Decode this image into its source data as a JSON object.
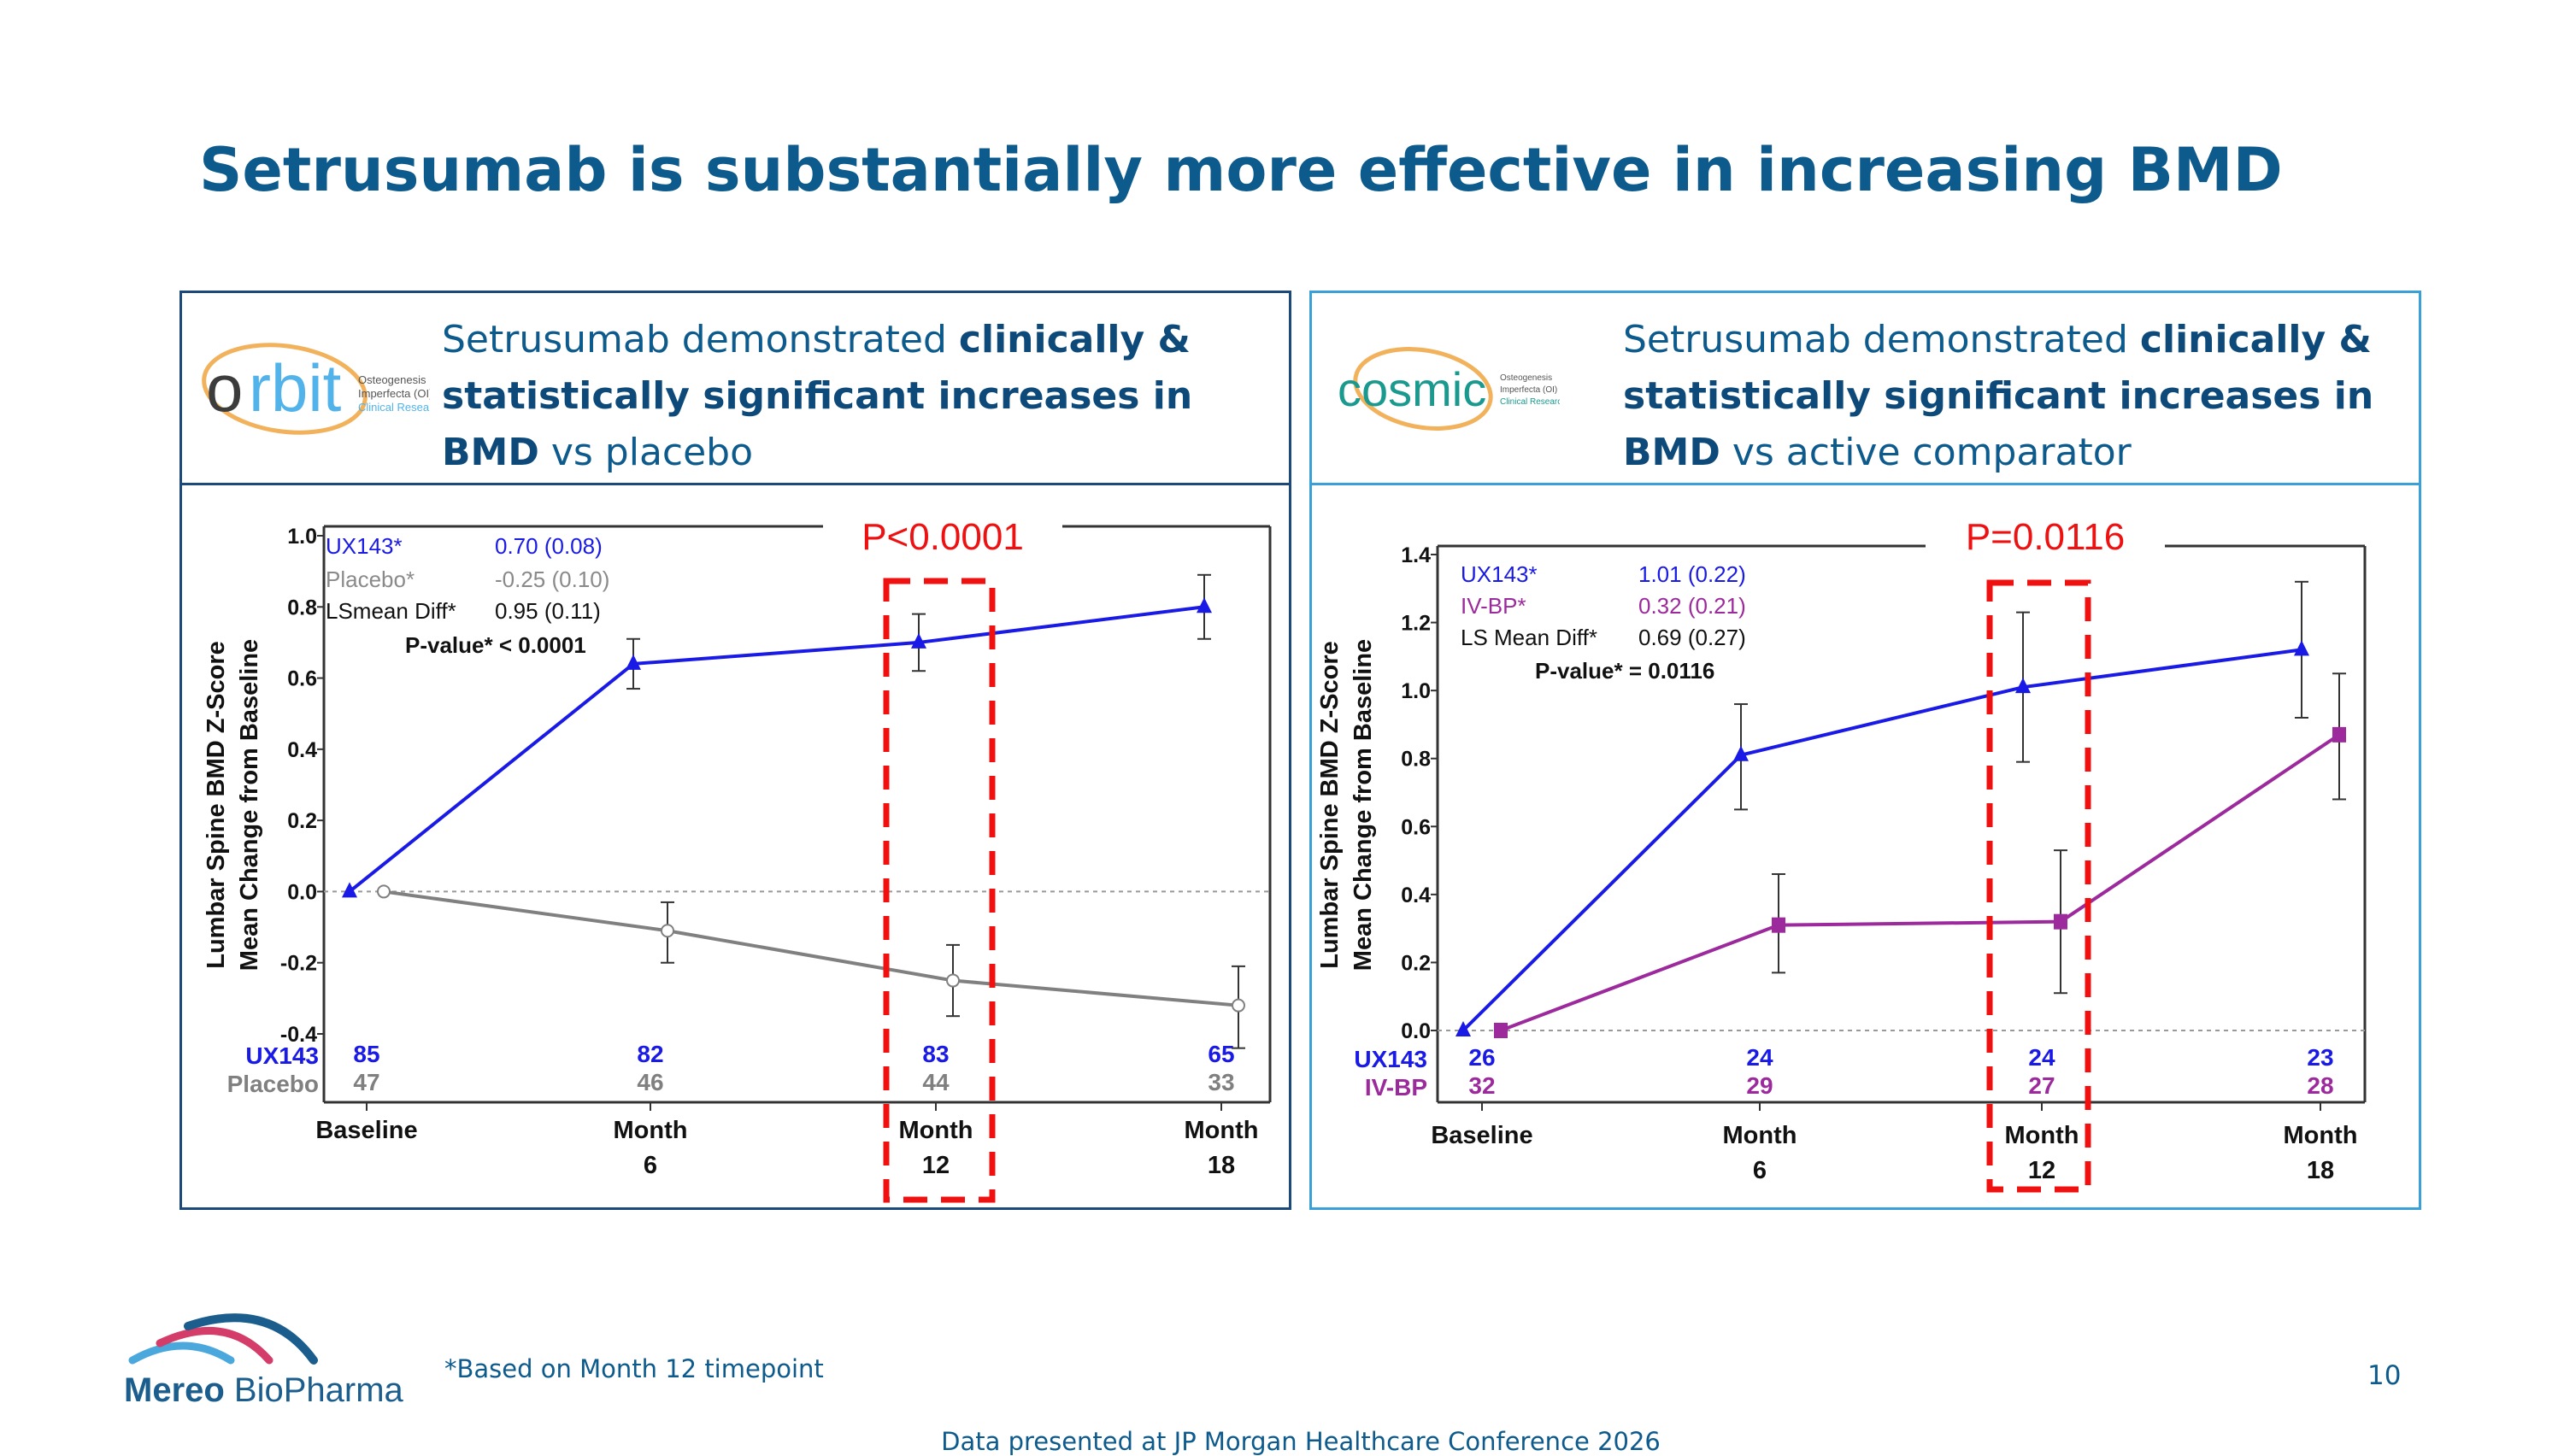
{
  "title": "Setrusumab is substantially more effective in increasing BMD",
  "panels": {
    "left": {
      "logo_text": "orbit",
      "logo_subtext": [
        "Osteogenesis",
        "Imperfecta (OI)",
        "Clinical Research"
      ],
      "headline_pre": "Setrusumab demonstrated ",
      "headline_bold": "clinically & statistically significant increases in BMD",
      "headline_post": " vs placebo"
    },
    "right": {
      "logo_text": "cosmic",
      "logo_subtext": [
        "Osteogenesis",
        "Imperfecta (OI)",
        "Clinical Research"
      ],
      "headline_pre": "Setrusumab demonstrated ",
      "headline_bold": "clinically & statistically significant increases in BMD",
      "headline_post": " vs active comparator"
    }
  },
  "footnote": "*Based on Month 12 timepoint",
  "page_number": "10",
  "source": "Data presented at JP Morgan Healthcare Conference 2026",
  "company_logo": {
    "bold": "Mereo",
    "light": " BioPharma",
    "colors": [
      "#1b5e8e",
      "#d43c6a",
      "#4aa8dc"
    ]
  },
  "chart_data": [
    {
      "type": "line",
      "ylabel": [
        "Lumbar Spine BMD Z-Score",
        "Mean Change from Baseline"
      ],
      "categories": [
        [
          "Baseline"
        ],
        [
          "Month",
          "6"
        ],
        [
          "Month",
          "12"
        ],
        [
          "Month",
          "18"
        ]
      ],
      "ylim": [
        -0.4,
        1.0
      ],
      "yticks": [
        "1.0",
        "0.8",
        "0.6",
        "0.4",
        "0.2",
        "0.0",
        "-0.2",
        "-0.4"
      ],
      "yticks_values": [
        1.0,
        0.8,
        0.6,
        0.4,
        0.2,
        0.0,
        -0.2,
        -0.4
      ],
      "reference_line": 0.0,
      "highlight_category": "Month 12",
      "p_annotation": "P<0.0001",
      "series": [
        {
          "name": "UX143",
          "color": "#1a1ae6",
          "marker": "triangle",
          "values": [
            0.0,
            0.64,
            0.7,
            0.8
          ],
          "error_low": [
            0.0,
            0.57,
            0.62,
            0.71
          ],
          "error_high": [
            0.0,
            0.71,
            0.78,
            0.89
          ],
          "n": [
            "85",
            "82",
            "83",
            "65"
          ]
        },
        {
          "name": "Placebo",
          "color": "#808080",
          "marker": "open-circle",
          "values": [
            0.0,
            -0.11,
            -0.25,
            -0.32
          ],
          "error_low": [
            0.0,
            -0.2,
            -0.35,
            -0.44
          ],
          "error_high": [
            0.0,
            -0.03,
            -0.15,
            -0.21
          ],
          "n": [
            "47",
            "46",
            "44",
            "33"
          ]
        }
      ],
      "stats_box": [
        {
          "label": "UX143*",
          "value": "0.70 (0.08)",
          "color": "#1a1ae6"
        },
        {
          "label": "Placebo*",
          "value": "-0.25 (0.10)",
          "color": "#8a8a8a"
        },
        {
          "label": "LSmean Diff*",
          "value": "0.95 (0.11)",
          "color": "#111111"
        }
      ],
      "p_value_text": "P-value* < 0.0001"
    },
    {
      "type": "line",
      "ylabel": [
        "Lumbar Spine BMD Z-Score",
        "Mean Change from Baseline"
      ],
      "categories": [
        [
          "Baseline"
        ],
        [
          "Month",
          "6"
        ],
        [
          "Month",
          "12"
        ],
        [
          "Month",
          "18"
        ]
      ],
      "ylim": [
        0.0,
        1.4
      ],
      "yticks": [
        "1.4",
        "1.2",
        "1.0",
        "0.8",
        "0.6",
        "0.4",
        "0.2",
        "0.0"
      ],
      "yticks_values": [
        1.4,
        1.2,
        1.0,
        0.8,
        0.6,
        0.4,
        0.2,
        0.0
      ],
      "reference_line": 0.0,
      "highlight_category": "Month 12",
      "p_annotation": "P=0.0116",
      "series": [
        {
          "name": "UX143",
          "color": "#1a1ae6",
          "marker": "triangle",
          "values": [
            0.0,
            0.81,
            1.01,
            1.12
          ],
          "error_low": [
            0.0,
            0.65,
            0.79,
            0.92
          ],
          "error_high": [
            0.0,
            0.96,
            1.23,
            1.32
          ],
          "n": [
            "26",
            "24",
            "24",
            "23"
          ]
        },
        {
          "name": "IV-BP",
          "color": "#9c2a9c",
          "marker": "square",
          "values": [
            0.0,
            0.31,
            0.32,
            0.87
          ],
          "error_low": [
            0.0,
            0.17,
            0.11,
            0.68
          ],
          "error_high": [
            0.0,
            0.46,
            0.53,
            1.05
          ],
          "n": [
            "32",
            "29",
            "27",
            "28"
          ]
        }
      ],
      "stats_box": [
        {
          "label": "UX143*",
          "value": "1.01 (0.22)",
          "color": "#1a1ae6"
        },
        {
          "label": "IV-BP*",
          "value": "0.32 (0.21)",
          "color": "#9c2a9c"
        },
        {
          "label": "LS Mean Diff*",
          "value": "0.69 (0.27)",
          "color": "#111111"
        }
      ],
      "p_value_text": "P-value* = 0.0116"
    }
  ]
}
